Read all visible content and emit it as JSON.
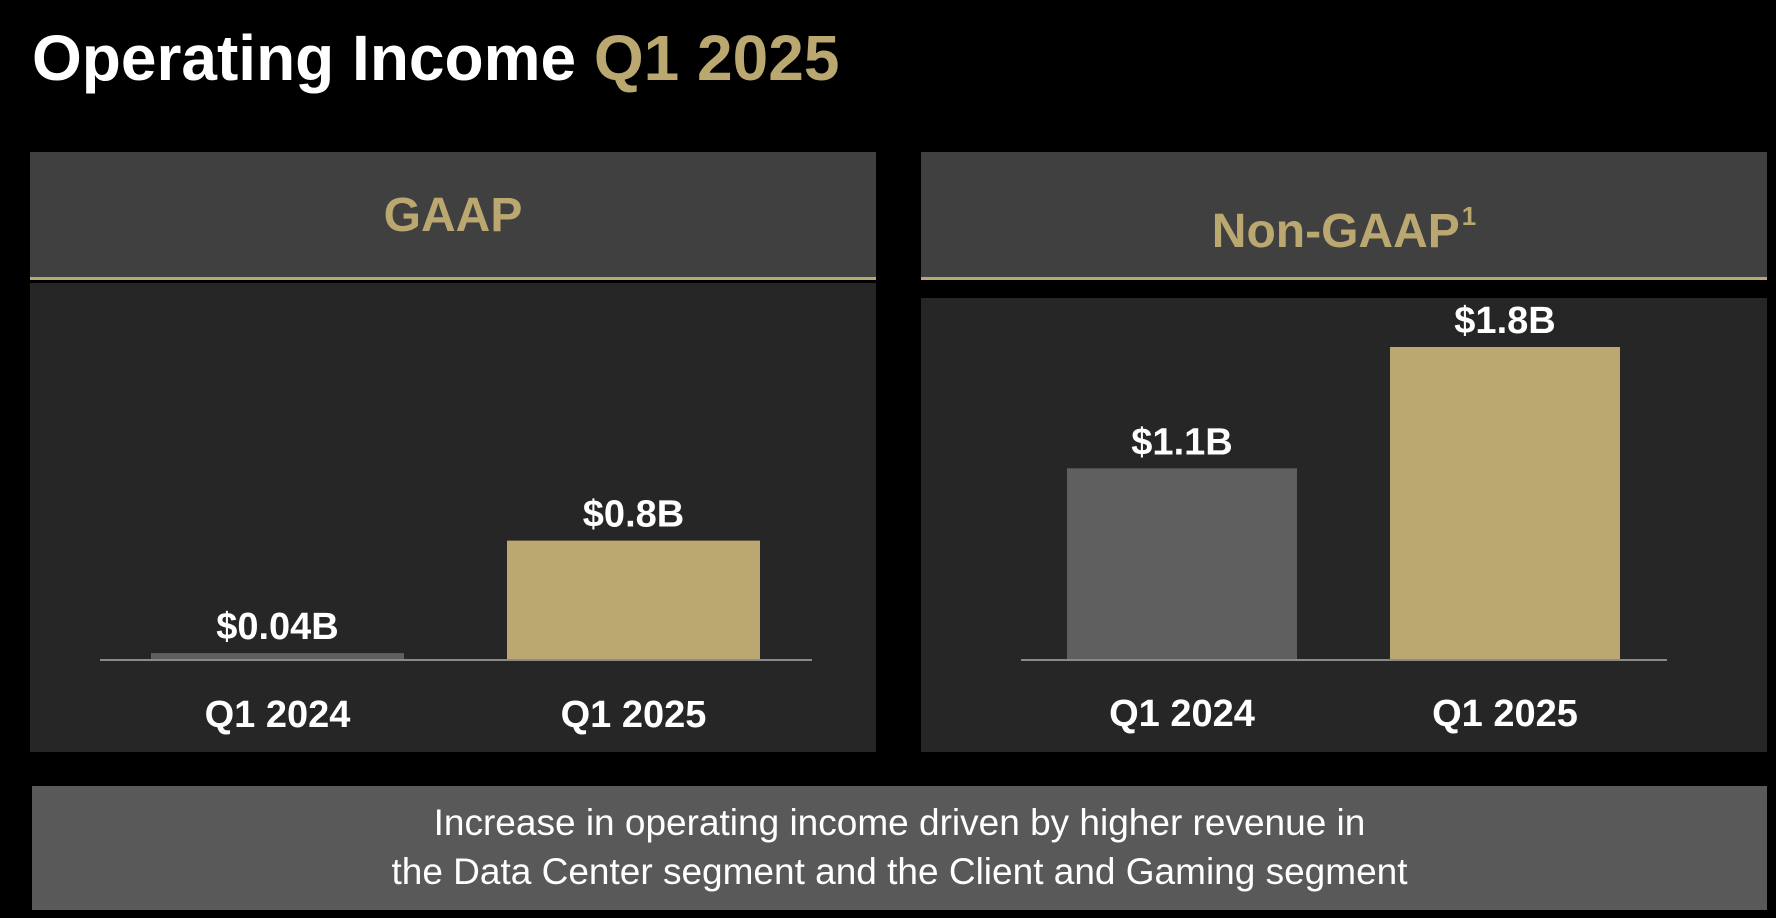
{
  "title": {
    "main": "Operating Income",
    "accent": "Q1 2025"
  },
  "colors": {
    "background": "#000000",
    "accent": "#bba870",
    "header_bg": "#404040",
    "panel_bg": "#262626",
    "bar_prior": "#5f5f5f",
    "bar_current": "#bba870",
    "footer_bg": "#595959"
  },
  "panels": [
    {
      "header": "GAAP",
      "footnote": ""
    },
    {
      "header": "Non-GAAP",
      "footnote": "1"
    }
  ],
  "chart_data": [
    {
      "type": "bar",
      "title": "GAAP",
      "categories": [
        "Q1 2024",
        "Q1 2025"
      ],
      "values": [
        0.04,
        0.8
      ],
      "value_labels": [
        "$0.04B",
        "$0.8B"
      ],
      "unit": "$B",
      "ylim": [
        0,
        2.0
      ]
    },
    {
      "type": "bar",
      "title": "Non-GAAP",
      "categories": [
        "Q1 2024",
        "Q1 2025"
      ],
      "values": [
        1.1,
        1.8
      ],
      "value_labels": [
        "$1.1B",
        "$1.8B"
      ],
      "unit": "$B",
      "ylim": [
        0,
        1.8
      ]
    }
  ],
  "footer": {
    "line1": "Increase in operating income driven by higher revenue in",
    "line2": "the Data Center segment and the Client and Gaming segment"
  }
}
